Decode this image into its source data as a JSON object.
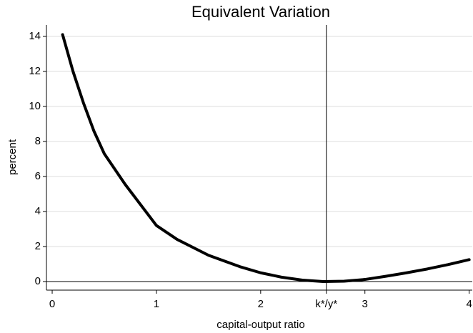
{
  "chart_data": {
    "type": "line",
    "title": "Equivalent Variation",
    "x_label": "capital-output ratio",
    "y_label": "percent",
    "series": [
      {
        "name": "equivalent variation",
        "color": "#000000",
        "x": [
          0.1,
          0.2,
          0.3,
          0.4,
          0.5,
          0.7,
          1.0,
          1.2,
          1.5,
          1.8,
          2.0,
          2.2,
          2.4,
          2.6,
          2.8,
          3.0,
          3.2,
          3.4,
          3.6,
          3.8,
          4.0
        ],
        "values": [
          14.1,
          12.0,
          10.2,
          8.6,
          7.3,
          5.55,
          3.2,
          2.4,
          1.5,
          0.85,
          0.5,
          0.25,
          0.08,
          0.0,
          0.02,
          0.12,
          0.3,
          0.5,
          0.72,
          0.97,
          1.25
        ]
      }
    ],
    "xlim": [
      -0.055,
      4.03
    ],
    "ylim": [
      -0.49,
      14.65
    ],
    "xticks": [
      0,
      1,
      2,
      3,
      4,
      {
        "value": 2.63,
        "label": "k*/y*"
      }
    ],
    "yticks": [
      0,
      2,
      4,
      6,
      8,
      10,
      12,
      14
    ],
    "grid": true
  }
}
